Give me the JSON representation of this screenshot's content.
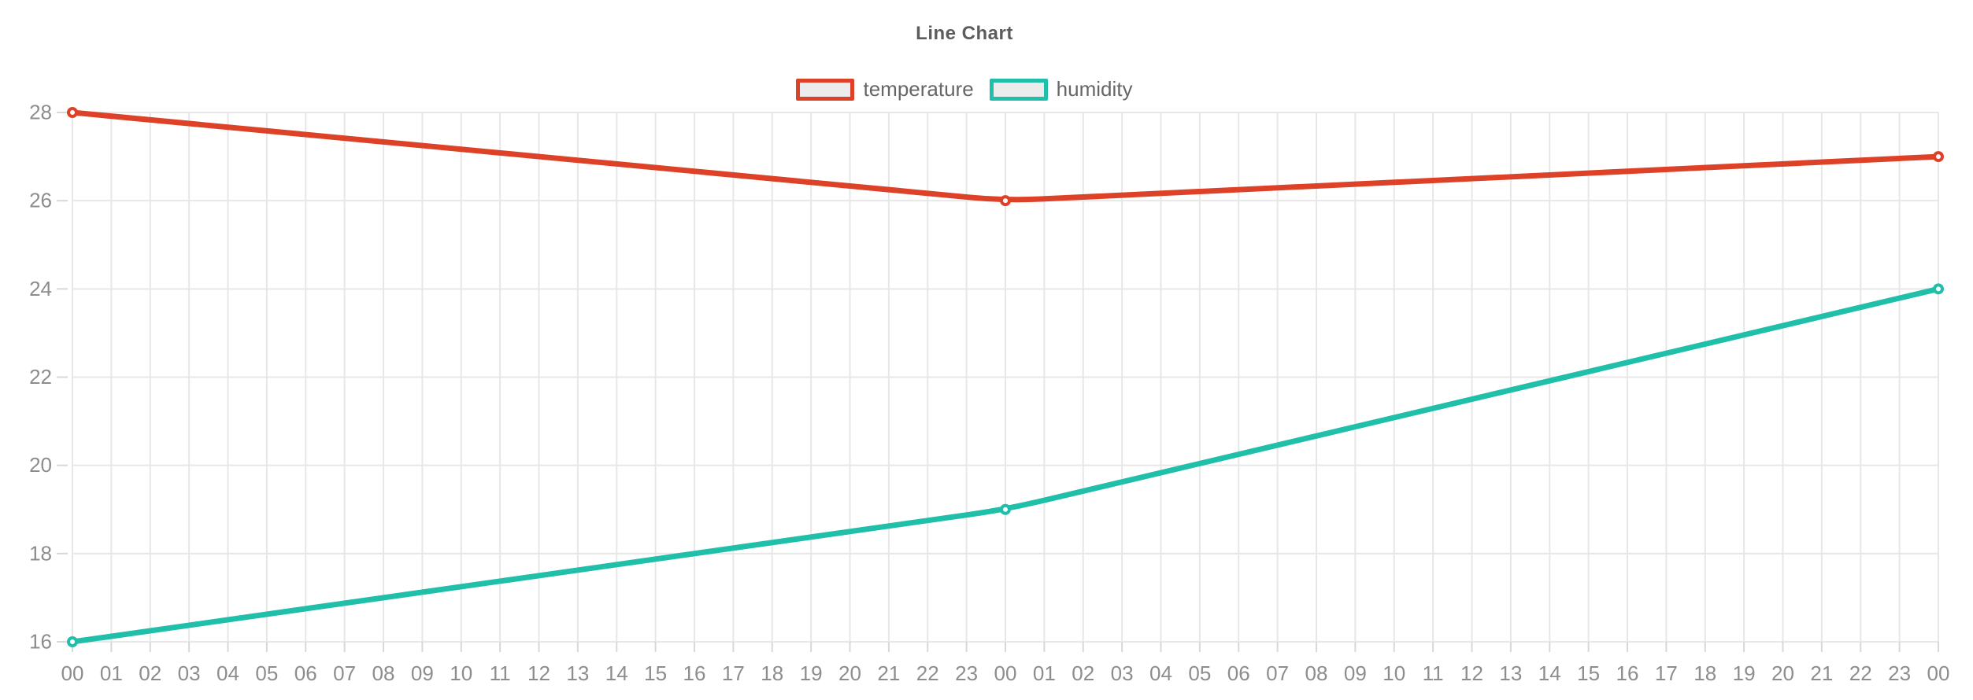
{
  "chart_data": {
    "type": "line",
    "title": "Line Chart",
    "xlabel": "",
    "ylabel": "",
    "ylim": [
      16,
      28
    ],
    "y_ticks": [
      "16",
      "18",
      "20",
      "22",
      "24",
      "26",
      "28"
    ],
    "grid": true,
    "legend_position": "top",
    "background_color": "#ffffff",
    "x_categories": [
      "00",
      "01",
      "02",
      "03",
      "04",
      "05",
      "06",
      "07",
      "08",
      "09",
      "10",
      "11",
      "12",
      "13",
      "14",
      "15",
      "16",
      "17",
      "18",
      "19",
      "20",
      "21",
      "22",
      "23",
      "00",
      "01",
      "02",
      "03",
      "04",
      "05",
      "06",
      "07",
      "08",
      "09",
      "10",
      "11",
      "12",
      "13",
      "14",
      "15",
      "16",
      "17",
      "18",
      "19",
      "20",
      "21",
      "22",
      "23",
      "00"
    ],
    "series": [
      {
        "name": "temperature",
        "color": "#dd4228",
        "data": [
          {
            "index": 0,
            "x_label": "00",
            "value": 28
          },
          {
            "index": 24,
            "x_label": "00",
            "value": 26
          },
          {
            "index": 48,
            "x_label": "00",
            "value": 27
          }
        ]
      },
      {
        "name": "humidity",
        "color": "#20bfa9",
        "data": [
          {
            "index": 0,
            "x_label": "00",
            "value": 16
          },
          {
            "index": 24,
            "x_label": "00",
            "value": 19
          },
          {
            "index": 48,
            "x_label": "00",
            "value": 24
          }
        ]
      }
    ]
  }
}
